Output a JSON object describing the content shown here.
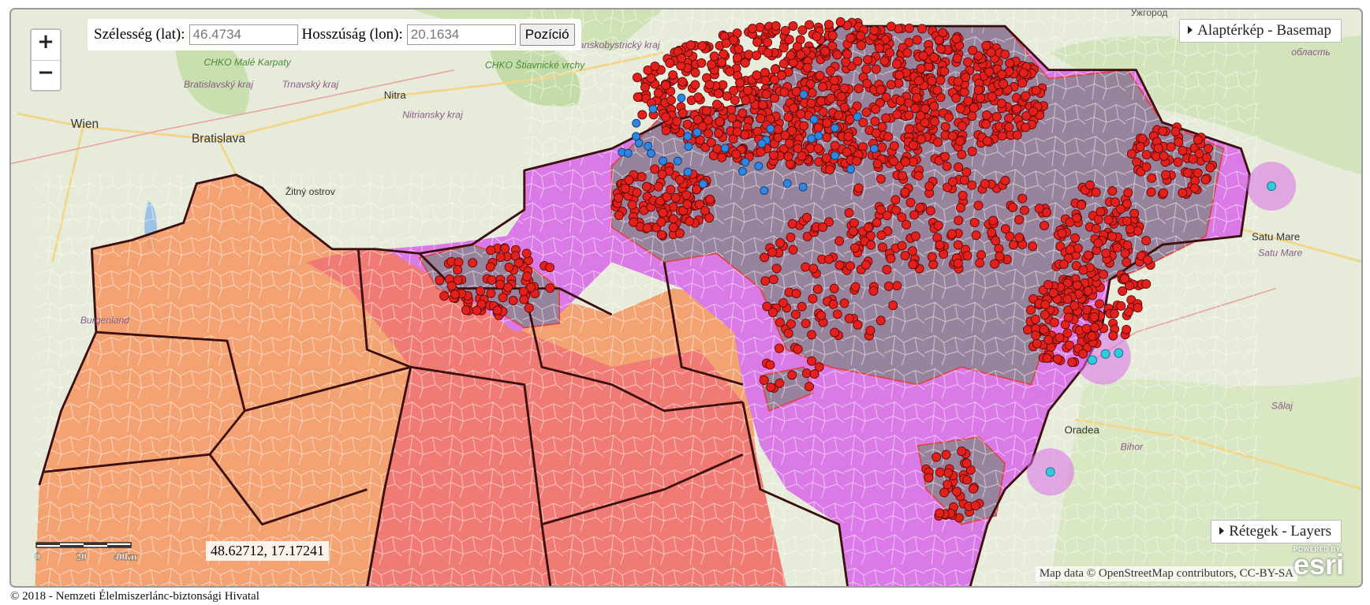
{
  "zoom": {
    "in": "+",
    "out": "−"
  },
  "position_panel": {
    "lat_label": "Szélesség (lat):",
    "lat_value": "46.4734",
    "lon_label": "Hosszúság (lon):",
    "lon_value": "20.1634",
    "button": "Pozíció"
  },
  "basemap_button": "Alaptérkép - Basemap",
  "layers_button": "Rétegek - Layers",
  "scale_bar": {
    "labels": [
      "0",
      "20",
      "40km"
    ]
  },
  "cursor_coordinates": "48.62712, 17.17241",
  "attribution": "Map data © OpenStreetMap contributors, CC-BY-SA",
  "esri_logo": {
    "powered_by": "POWERED BY",
    "name": "esri"
  },
  "footer": "© 2018 - Nemzeti Élelmiszerlánc-biztonsági Hivatal",
  "map_labels": [
    "Ужгород",
    "CHKO Malé Karpaty",
    "Bratislavský kraj",
    "Trnavský kraj",
    "CHKO Štiavnické vrchy",
    "Banskobystrický kraj",
    "Nitriansky kraj",
    "Wien",
    "Bratislava",
    "Nitra",
    "Žitný ostrov",
    "Burgenland",
    "Satu Mare",
    "Satu Mare",
    "Oradea",
    "Bihor",
    "Sălaj",
    "область"
  ]
}
